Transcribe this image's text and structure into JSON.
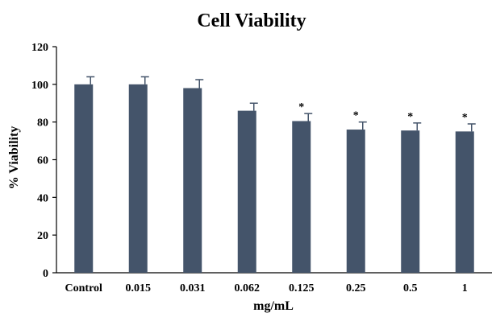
{
  "chart_data": {
    "type": "bar",
    "title": "Cell Viability",
    "xlabel": "mg/mL",
    "ylabel": "% Viability",
    "categories": [
      "Control",
      "0.015",
      "0.031",
      "0.062",
      "0.125",
      "0.25",
      "0.5",
      "1"
    ],
    "values": [
      100,
      100,
      98,
      86,
      80.5,
      76,
      75.5,
      75
    ],
    "errors": [
      4,
      4,
      4.5,
      4,
      4,
      4,
      4,
      4
    ],
    "significance": [
      "",
      "",
      "",
      "",
      "*",
      "*",
      "*",
      "*"
    ],
    "ylim": [
      0,
      120
    ],
    "yticks": [
      0,
      20,
      40,
      60,
      80,
      100,
      120
    ],
    "grid": false,
    "bar_color": "#44546a"
  }
}
